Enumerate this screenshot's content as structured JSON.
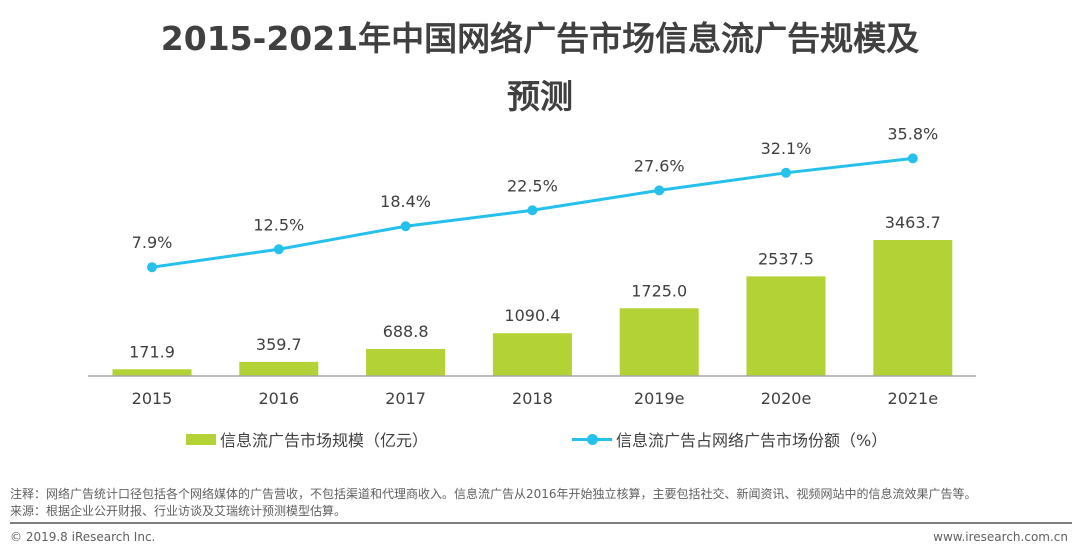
{
  "title_line1": "2015-2021年中国网络广告市场信息流广告规模及",
  "title_line2": "预测",
  "chart_data": {
    "type": "bar+line",
    "title": "2015-2021年中国网络广告市场信息流广告规模及预测",
    "categories": [
      "2015",
      "2016",
      "2017",
      "2018",
      "2019e",
      "2020e",
      "2021e"
    ],
    "series": [
      {
        "name": "信息流广告市场规模（亿元）",
        "type": "bar",
        "color": "#b2d235",
        "values": [
          171.9,
          359.7,
          688.8,
          1090.4,
          1725.0,
          2537.5,
          3463.7
        ],
        "labels": [
          "171.9",
          "359.7",
          "688.8",
          "1090.4",
          "1725.0",
          "2537.5",
          "3463.7"
        ]
      },
      {
        "name": "信息流广告占网络广告市场份额（%）",
        "type": "line",
        "color": "#25c0eb",
        "values": [
          7.9,
          12.5,
          18.4,
          22.5,
          27.6,
          32.1,
          35.8
        ],
        "labels": [
          "7.9%",
          "12.5%",
          "18.4%",
          "22.5%",
          "27.6%",
          "32.1%",
          "35.8%"
        ]
      }
    ],
    "xlabel": "",
    "ylabel": "",
    "grid": false,
    "legend_position": "bottom"
  },
  "legend": {
    "bar_label": "信息流广告市场规模（亿元）",
    "line_label": "信息流广告占网络广告市场份额（%）"
  },
  "notes": {
    "line1": "注释：网络广告统计口径包括各个网络媒体的广告营收，不包括渠道和代理商收入。信息流广告从2016年开始独立核算，主要包括社交、新闻资讯、视频网站中的信息流效果广告等。",
    "line2": "来源：根据企业公开财报、行业访谈及艾瑞统计预测模型估算。"
  },
  "footer": {
    "copyright": "© 2019.8 iResearch Inc.",
    "website": "www.iresearch.com.cn"
  }
}
